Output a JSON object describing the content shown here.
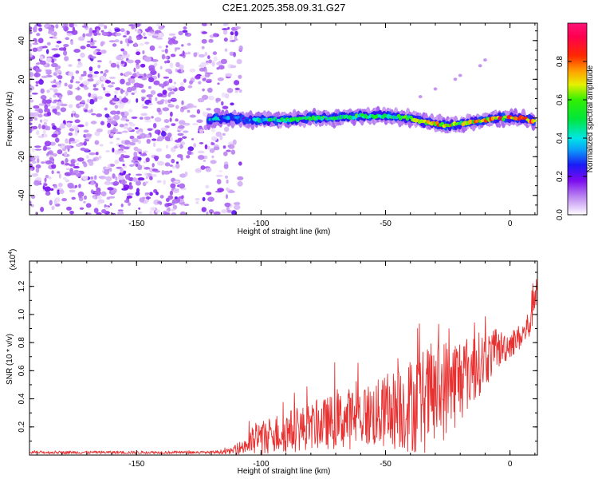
{
  "title": "C2E1.2025.358.09.31.G27",
  "colors": {
    "snr_line": "#e83232",
    "scatter_purple": "#8c1ee6",
    "background": "#ffffff"
  },
  "chart_data": [
    {
      "type": "heatmap",
      "name": "spectrogram",
      "xlabel": "Height of straight line (km)",
      "ylabel": "Frequency (Hz)",
      "xlim": [
        -193,
        11
      ],
      "ylim": [
        -50,
        49
      ],
      "xticks": [
        {
          "value": -150,
          "label": "-150"
        },
        {
          "value": -100,
          "label": "-100"
        },
        {
          "value": -50,
          "label": "-50"
        },
        {
          "value": 0,
          "label": "0"
        }
      ],
      "yticks": [
        {
          "value": -40,
          "label": "-40"
        },
        {
          "value": -20,
          "label": "-20"
        },
        {
          "value": 0,
          "label": "0"
        },
        {
          "value": 20,
          "label": "20"
        },
        {
          "value": 40,
          "label": "40"
        }
      ],
      "colorbar": {
        "label": "Normalized spectral amplitude",
        "range": [
          0.0,
          1.0
        ],
        "ticks": [
          {
            "value": 0.0,
            "label": "0.0"
          },
          {
            "value": 0.2,
            "label": "0.2"
          },
          {
            "value": 0.4,
            "label": "0.4"
          },
          {
            "value": 0.6,
            "label": "0.6"
          },
          {
            "value": 0.8,
            "label": "0.8"
          }
        ]
      },
      "noise_region": {
        "x_start": -193,
        "x_end": -112,
        "amplitude_range": [
          0.02,
          0.15
        ]
      },
      "signal_track": {
        "x": [
          -121,
          -115,
          -110,
          -105,
          -100,
          -90,
          -80,
          -70,
          -60,
          -50,
          -40,
          -35,
          -30,
          -25,
          -20,
          -15,
          -10,
          -5,
          0,
          5,
          10
        ],
        "frequency": [
          -1,
          0,
          0,
          -1,
          -1,
          -1,
          0,
          0,
          1,
          1,
          0,
          -2,
          -3,
          -4,
          -3,
          -2,
          -1,
          0,
          0,
          0,
          -2
        ],
        "amplitude": [
          0.45,
          0.4,
          0.35,
          0.3,
          0.5,
          0.55,
          0.6,
          0.55,
          0.6,
          0.6,
          0.6,
          0.75,
          0.85,
          0.8,
          0.7,
          0.8,
          0.85,
          0.9,
          0.95,
          0.95,
          0.9
        ]
      },
      "faint_points": [
        {
          "x": -10,
          "frequency": 30
        },
        {
          "x": -12,
          "frequency": 27
        },
        {
          "x": -20,
          "frequency": 22
        },
        {
          "x": -22,
          "frequency": 20
        },
        {
          "x": -30,
          "frequency": 15
        },
        {
          "x": -36,
          "frequency": 11
        }
      ]
    },
    {
      "type": "line",
      "name": "snr",
      "xlabel": "Height of straight line (km)",
      "ylabel": "SNR (10 * v/v)",
      "scale_label": "(x10",
      "scale_exponent": "4",
      "xlim": [
        -193,
        11
      ],
      "ylim": [
        0,
        1.38
      ],
      "xticks": [
        {
          "value": -150,
          "label": "-150"
        },
        {
          "value": -100,
          "label": "-100"
        },
        {
          "value": -50,
          "label": "-50"
        },
        {
          "value": 0,
          "label": "0"
        }
      ],
      "yticks": [
        {
          "value": 0.2,
          "label": "0.2"
        },
        {
          "value": 0.4,
          "label": "0.4"
        },
        {
          "value": 0.6,
          "label": "0.6"
        },
        {
          "value": 0.8,
          "label": "0.8"
        },
        {
          "value": 1.0,
          "label": "1.0"
        },
        {
          "value": 1.2,
          "label": "1.2"
        }
      ],
      "series": [
        {
          "name": "SNR",
          "x": [
            -193,
            -180,
            -165,
            -150,
            -135,
            -120,
            -112,
            -108,
            -104,
            -100,
            -95,
            -90,
            -85,
            -80,
            -75,
            -70,
            -65,
            -60,
            -55,
            -50,
            -45,
            -40,
            -35,
            -30,
            -25,
            -20,
            -15,
            -10,
            -5,
            0,
            5,
            8,
            10
          ],
          "y": [
            0.02,
            0.02,
            0.02,
            0.02,
            0.02,
            0.02,
            0.03,
            0.06,
            0.1,
            0.14,
            0.16,
            0.18,
            0.2,
            0.22,
            0.24,
            0.26,
            0.28,
            0.3,
            0.31,
            0.33,
            0.36,
            0.39,
            0.42,
            0.47,
            0.52,
            0.58,
            0.64,
            0.7,
            0.76,
            0.8,
            0.86,
            0.95,
            1.2
          ],
          "spread": [
            0.01,
            0.01,
            0.01,
            0.01,
            0.01,
            0.01,
            0.02,
            0.05,
            0.1,
            0.14,
            0.14,
            0.15,
            0.16,
            0.16,
            0.18,
            0.2,
            0.22,
            0.22,
            0.24,
            0.26,
            0.3,
            0.34,
            0.38,
            0.38,
            0.36,
            0.32,
            0.26,
            0.2,
            0.14,
            0.1,
            0.09,
            0.12,
            0.18
          ]
        }
      ]
    }
  ]
}
